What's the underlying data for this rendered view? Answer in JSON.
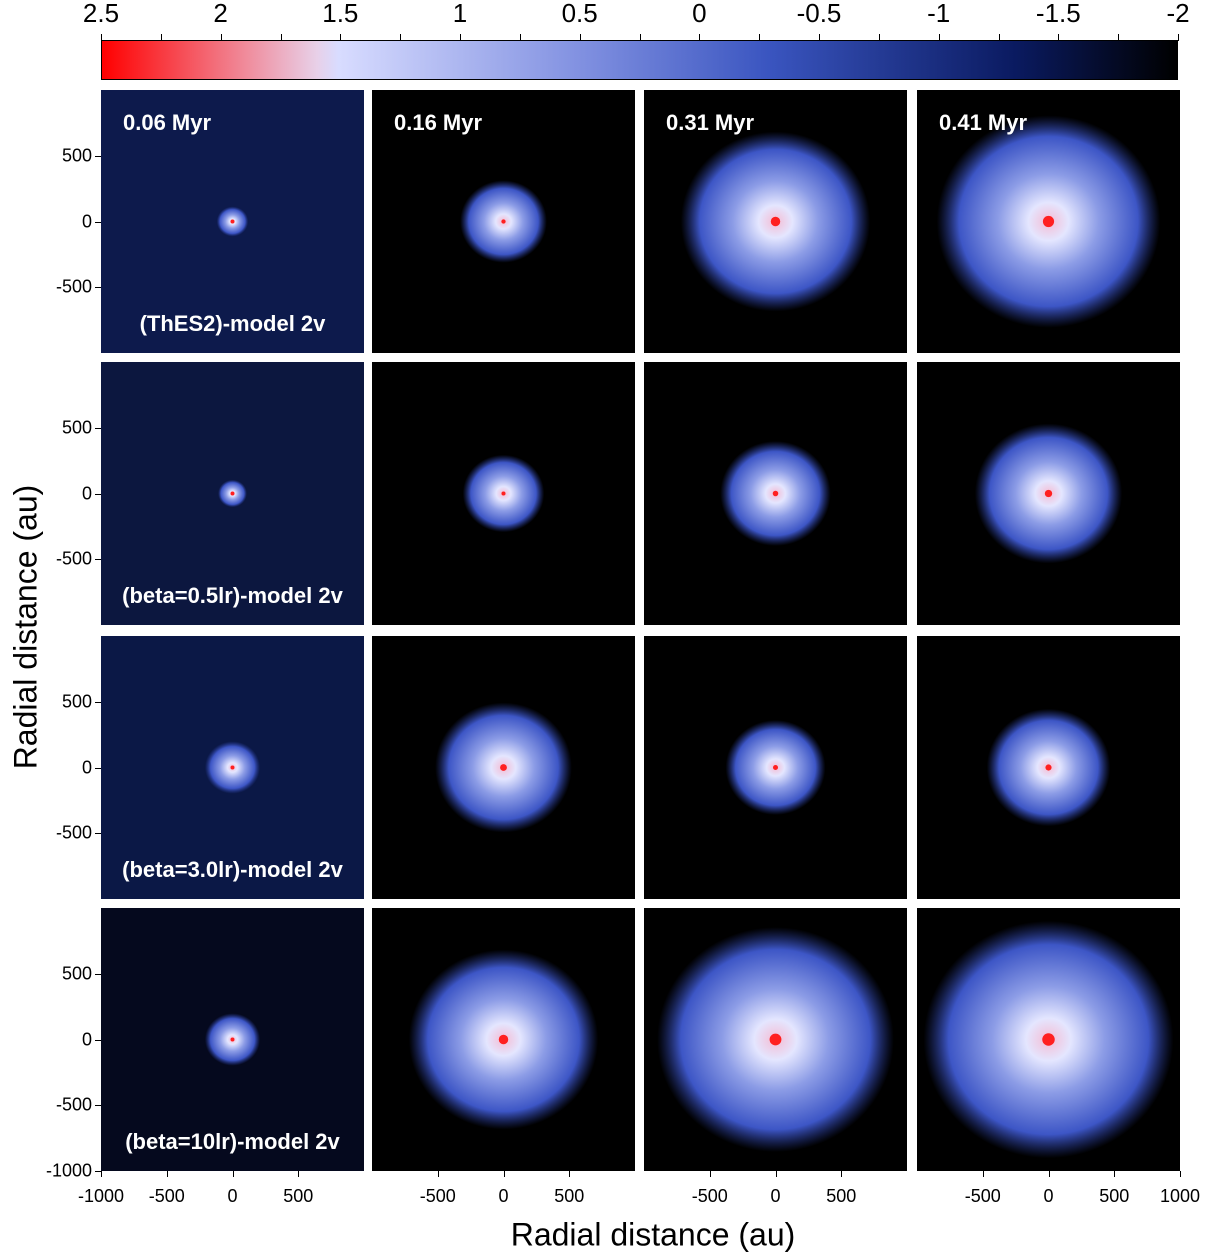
{
  "chart_data": {
    "type": "heatmap",
    "colorbar": {
      "tick_labels": [
        "2.5",
        "2",
        "1.5",
        "1",
        "0.5",
        "0",
        "-0.5",
        "-1",
        "-1.5",
        "-2"
      ],
      "range": [
        2.5,
        -2
      ],
      "colors": [
        "#ff0000",
        "#e8d0e8",
        "#d8dcff",
        "#7f8fe0",
        "#3a55c0",
        "#0a1a60",
        "#000000"
      ]
    },
    "x_axis": {
      "label": "Radial distance (au)",
      "range": [
        -1000,
        1000
      ],
      "first_panel_ticks": [
        "-1000",
        "-500",
        "0",
        "500"
      ],
      "inner_panel_ticks": [
        "-500",
        "0",
        "500"
      ],
      "last_panel_ticks": [
        "-500",
        "0",
        "500",
        "1000"
      ]
    },
    "y_axis": {
      "label": "Radial distance (au)",
      "range": [
        -1000,
        1000
      ],
      "row_ticks": [
        "500",
        "0",
        "-500"
      ],
      "bottom_row_ticks": [
        "500",
        "0",
        "-500",
        "-1000"
      ]
    },
    "columns": [
      {
        "time": "0.06 Myr"
      },
      {
        "time": "0.16 Myr"
      },
      {
        "time": "0.31 Myr"
      },
      {
        "time": "0.41 Myr"
      }
    ],
    "rows": [
      {
        "model": "(ThES2)-model 2v"
      },
      {
        "model": "(beta=0.5lr)-model 2v"
      },
      {
        "model": "(beta=3.0lr)-model 2v"
      },
      {
        "model": "(beta=10lr)-model 2v"
      }
    ],
    "disk_radius_au": [
      [
        120,
        330,
        720,
        850
      ],
      [
        110,
        310,
        420,
        560
      ],
      [
        210,
        520,
        380,
        470
      ],
      [
        210,
        720,
        900,
        950
      ]
    ]
  }
}
